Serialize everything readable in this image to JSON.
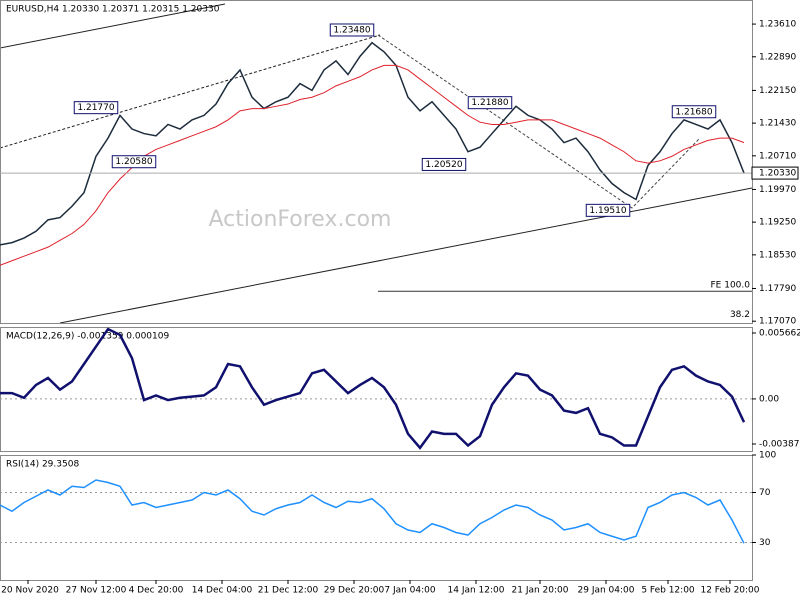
{
  "chart_data": [
    {
      "type": "line",
      "title": "EURUSD,H4 1.20330 1.20371 1.20315 1.20330",
      "watermark": "ActionForex.com",
      "x": [
        0,
        6,
        12,
        18,
        24,
        30,
        36,
        42,
        48,
        54,
        60,
        66,
        72,
        78,
        84,
        90,
        96,
        102,
        108,
        114,
        120,
        126,
        132,
        138,
        144,
        150,
        156,
        162,
        168,
        174,
        180,
        186,
        192,
        198,
        204,
        210,
        216,
        222,
        228,
        234,
        240,
        246,
        252,
        258,
        264,
        270,
        276,
        282,
        288,
        294,
        300,
        306,
        312,
        318,
        324,
        330,
        336,
        342,
        348,
        354,
        360,
        366,
        372
      ],
      "xlim": [
        0,
        376
      ],
      "ylim": [
        1.1703,
        1.2414
      ],
      "yticks": [
        {
          "value": 1.2361,
          "label": "1.23610"
        },
        {
          "value": 1.2289,
          "label": "1.22890"
        },
        {
          "value": 1.2215,
          "label": "1.22150"
        },
        {
          "value": 1.2143,
          "label": "1.21430"
        },
        {
          "value": 1.2071,
          "label": "1.20710"
        },
        {
          "value": 1.1997,
          "label": "1.19970"
        },
        {
          "value": 1.1925,
          "label": "1.19250"
        },
        {
          "value": 1.1853,
          "label": "1.18530"
        },
        {
          "value": 1.1779,
          "label": "1.17790"
        },
        {
          "value": 1.1707,
          "label": "1.17070"
        }
      ],
      "xticks": [
        {
          "value": 14,
          "label": "20 Nov 2020"
        },
        {
          "value": 48,
          "label": "27 Nov 12:00"
        },
        {
          "value": 78,
          "label": "4 Dec 20:00"
        },
        {
          "value": 111,
          "label": "14 Dec 04:00"
        },
        {
          "value": 144,
          "label": "21 Dec 12:00"
        },
        {
          "value": 177,
          "label": "29 Dec 20:00"
        },
        {
          "value": 205,
          "label": "7 Jan 04:00"
        },
        {
          "value": 238,
          "label": "14 Jan 12:00"
        },
        {
          "value": 270,
          "label": "21 Jan 20:00"
        },
        {
          "value": 303,
          "label": "29 Jan 04:00"
        },
        {
          "value": 334,
          "label": "5 Feb 12:00"
        },
        {
          "value": 365,
          "label": "12 Feb 20:00"
        }
      ],
      "series": [
        {
          "color": "#1c2c3c",
          "values": [
            1.1875,
            1.188,
            1.189,
            1.1905,
            1.193,
            1.1935,
            1.196,
            1.199,
            1.207,
            1.211,
            1.216,
            1.213,
            1.212,
            1.2115,
            1.214,
            1.213,
            1.215,
            1.216,
            1.2185,
            1.223,
            1.226,
            1.22,
            1.2175,
            1.219,
            1.22,
            1.223,
            1.2215,
            1.226,
            1.228,
            1.225,
            1.229,
            1.232,
            1.23,
            1.227,
            1.22,
            1.217,
            1.219,
            1.216,
            1.213,
            1.208,
            1.209,
            1.212,
            1.215,
            1.218,
            1.216,
            1.215,
            1.213,
            1.21,
            1.211,
            1.208,
            1.204,
            1.201,
            1.199,
            1.1975,
            1.205,
            1.208,
            1.212,
            1.215,
            1.214,
            1.213,
            1.215,
            1.21,
            1.2033
          ]
        },
        {
          "color": "#e0202a",
          "values": [
            1.183,
            1.184,
            1.185,
            1.186,
            1.187,
            1.1885,
            1.19,
            1.192,
            1.195,
            1.199,
            1.202,
            1.2045,
            1.207,
            1.2085,
            1.2095,
            1.2105,
            1.2115,
            1.2125,
            1.2135,
            1.215,
            1.217,
            1.2175,
            1.2175,
            1.218,
            1.2185,
            1.2195,
            1.22,
            1.221,
            1.2225,
            1.2235,
            1.2245,
            1.226,
            1.227,
            1.227,
            1.226,
            1.224,
            1.222,
            1.22,
            1.218,
            1.216,
            1.2145,
            1.214,
            1.214,
            1.2145,
            1.215,
            1.215,
            1.215,
            1.214,
            1.213,
            1.212,
            1.211,
            1.2095,
            1.208,
            1.206,
            1.2055,
            1.206,
            1.207,
            1.2085,
            1.2095,
            1.2105,
            1.211,
            1.211,
            1.21
          ]
        }
      ],
      "annotations": [
        {
          "x": 176,
          "value": 1.2348,
          "label": "1.23480"
        },
        {
          "x": 48,
          "value": 1.2177,
          "label": "1.21770"
        },
        {
          "x": 67,
          "value": 1.2058,
          "label": "1.20580"
        },
        {
          "x": 245,
          "value": 1.2188,
          "label": "1.21880"
        },
        {
          "x": 222,
          "value": 1.2052,
          "label": "1.20520"
        },
        {
          "x": 304,
          "value": 1.1951,
          "label": "1.19510"
        },
        {
          "x": 347,
          "value": 1.2168,
          "label": "1.21680"
        }
      ],
      "last": {
        "value": 1.2033,
        "label": "1.20330"
      },
      "levels": [
        {
          "x": 189,
          "value": 1.1773,
          "label": "FE 100.0"
        },
        {
          "x": 376,
          "value": 1.1708,
          "label": "38.2"
        }
      ]
    },
    {
      "type": "line",
      "title": "MACD(12,26,9) -0.001359 0.000109",
      "x": [
        0,
        6,
        12,
        18,
        24,
        30,
        36,
        42,
        48,
        54,
        60,
        66,
        72,
        78,
        84,
        90,
        96,
        102,
        108,
        114,
        120,
        126,
        132,
        138,
        144,
        150,
        156,
        162,
        168,
        174,
        180,
        186,
        192,
        198,
        204,
        210,
        216,
        222,
        228,
        234,
        240,
        246,
        252,
        258,
        264,
        270,
        276,
        282,
        288,
        294,
        300,
        306,
        312,
        318,
        324,
        330,
        336,
        342,
        348,
        354,
        360,
        366,
        372
      ],
      "xlim": [
        0,
        376
      ],
      "ylim": [
        -0.004473,
        0.006177
      ],
      "yticks": [
        0.005662,
        {
          "value": 0,
          "label": "0.00"
        },
        -0.003872
      ],
      "grid_at": [
        0
      ],
      "series": [
        {
          "color": "#10106e",
          "values": [
            0.0005,
            0.0005,
            0.0001,
            0.0012,
            0.0018,
            0.0008,
            0.0015,
            0.003,
            0.0045,
            0.006,
            0.0055,
            0.0035,
            -0.0001,
            0.0003,
            -0.0001,
            0.0001,
            0.0002,
            0.0003,
            0.001,
            0.003,
            0.0028,
            0.001,
            -0.0005,
            -0.0001,
            0.0002,
            0.0005,
            0.0022,
            0.0025,
            0.0015,
            0.0005,
            0.0012,
            0.0018,
            0.001,
            -0.0005,
            -0.003,
            -0.0042,
            -0.0028,
            -0.003,
            -0.003,
            -0.004,
            -0.0032,
            -0.0005,
            0.001,
            0.0022,
            0.002,
            0.0008,
            0.0003,
            -0.001,
            -0.0012,
            -0.0008,
            -0.003,
            -0.0033,
            -0.004,
            -0.004,
            -0.0015,
            0.001,
            0.0025,
            0.0028,
            0.002,
            0.0015,
            0.0012,
            0.0002,
            -0.002
          ]
        }
      ]
    },
    {
      "type": "line",
      "title": "RSI(14) 29.3508",
      "x": [
        0,
        6,
        12,
        18,
        24,
        30,
        36,
        42,
        48,
        54,
        60,
        66,
        72,
        78,
        84,
        90,
        96,
        102,
        108,
        114,
        120,
        126,
        132,
        138,
        144,
        150,
        156,
        162,
        168,
        174,
        180,
        186,
        192,
        198,
        204,
        210,
        216,
        222,
        228,
        234,
        240,
        246,
        252,
        258,
        264,
        270,
        276,
        282,
        288,
        294,
        300,
        306,
        312,
        318,
        324,
        330,
        336,
        342,
        348,
        354,
        360,
        366,
        372
      ],
      "xlim": [
        0,
        376
      ],
      "ylim": [
        0,
        100
      ],
      "yticks": [
        100,
        70,
        30
      ],
      "grid_at": [
        70,
        30
      ],
      "series": [
        {
          "color": "#1e90ff",
          "values": [
            60,
            55,
            62,
            67,
            72,
            68,
            75,
            74,
            80,
            78,
            75,
            60,
            62,
            58,
            60,
            62,
            64,
            70,
            68,
            72,
            65,
            55,
            52,
            57,
            60,
            62,
            68,
            62,
            58,
            63,
            62,
            65,
            57,
            45,
            40,
            38,
            45,
            42,
            38,
            36,
            45,
            50,
            56,
            60,
            58,
            52,
            48,
            40,
            42,
            45,
            38,
            35,
            32,
            35,
            58,
            62,
            68,
            70,
            66,
            60,
            64,
            48,
            29.35
          ]
        }
      ]
    }
  ]
}
